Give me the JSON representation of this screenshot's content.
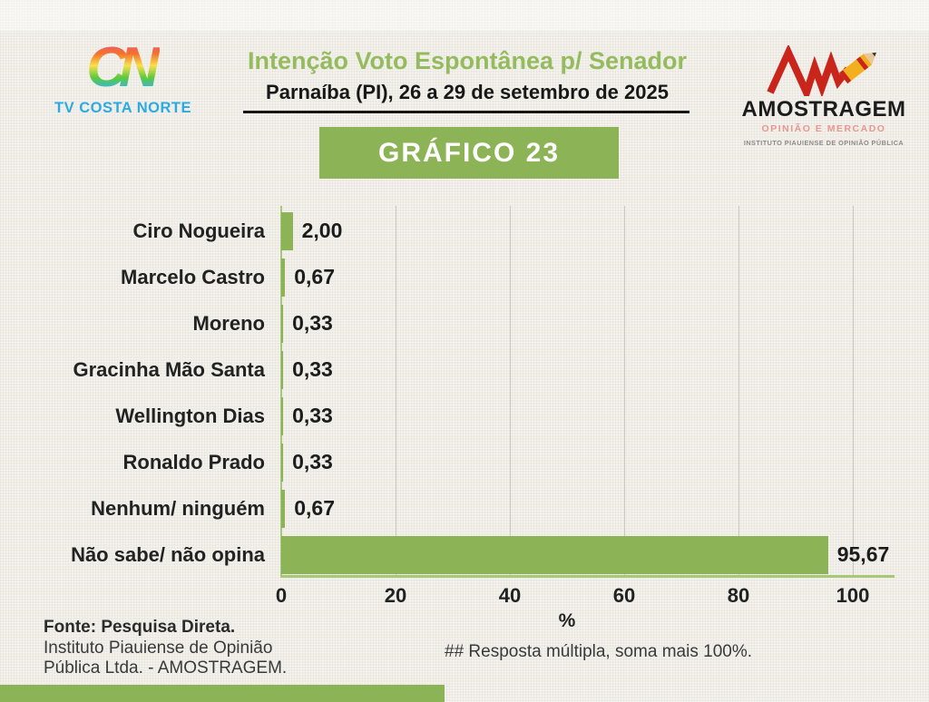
{
  "header": {
    "logo_tv": {
      "mark": "CN",
      "name": "TV COSTA NORTE"
    },
    "title": "Intenção Voto Espontânea p/ Senador",
    "subtitle": "Parnaíba (PI), 26 a 29 de setembro de 2025",
    "logo_amostragem": {
      "name": "AMOSTRAGEM",
      "tagline": "OPINIÃO E MERCADO",
      "subtext": "INSTITUTO PIAUIENSE DE OPINIÃO PÚBLICA"
    }
  },
  "banner": {
    "label": "GRÁFICO 23"
  },
  "chart_data": {
    "type": "bar",
    "orientation": "horizontal",
    "title": "Intenção Voto Espontânea p/ Senador — Gráfico 23",
    "categories": [
      "Ciro Nogueira",
      "Marcelo Castro",
      "Moreno",
      "Gracinha Mão Santa",
      "Wellington Dias",
      "Ronaldo Prado",
      "Nenhum/ ninguém",
      "Não sabe/ não opina"
    ],
    "values": [
      2.0,
      0.67,
      0.33,
      0.33,
      0.33,
      0.33,
      0.67,
      95.67
    ],
    "value_labels": [
      "2,00",
      "0,67",
      "0,33",
      "0,33",
      "0,33",
      "0,33",
      "0,67",
      "95,67"
    ],
    "xticks": [
      0,
      20,
      40,
      60,
      80,
      100
    ],
    "xtick_labels": [
      "0",
      "20",
      "40",
      "60",
      "80",
      "100"
    ],
    "xlabel": "%",
    "xlim": [
      0,
      100
    ],
    "grid": true,
    "legend": "none",
    "bar_color": "#8cb457"
  },
  "footer": {
    "source_bold": "Fonte: Pesquisa Direta.",
    "source_line2": "Instituto Piauiense de Opinião",
    "source_line3": "Pública Ltda. - AMOSTRAGEM.",
    "note": "## Resposta múltipla, soma mais 100%."
  },
  "colors": {
    "accent_green": "#8cb457",
    "title_green": "#94bb5e",
    "axis_green": "#a6c878",
    "logo_blue": "#29abe2",
    "logo_red": "#c9251b",
    "tagline_salmon": "#e8978c",
    "text_dark": "#1c1c1c",
    "background": "#f0ede7"
  }
}
